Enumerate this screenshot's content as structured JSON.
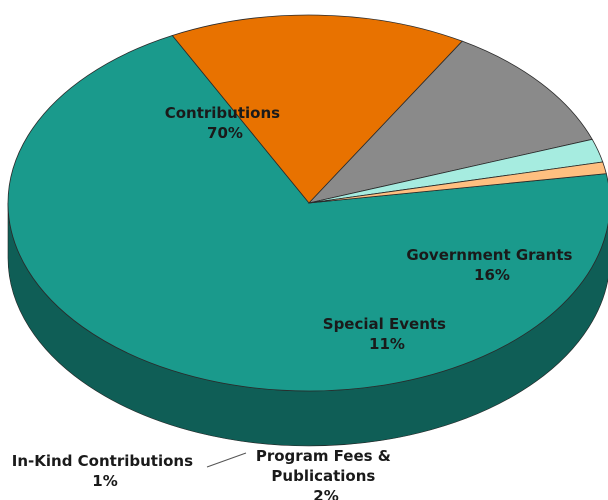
{
  "chart_data": {
    "type": "pie",
    "title": "",
    "slices": [
      {
        "label": "Contributions",
        "value": 70,
        "value_label": "70%",
        "color": "#1a9a8c",
        "side_color": "#0f5e56"
      },
      {
        "label": "Government Grants",
        "value": 16,
        "value_label": "16%",
        "color": "#e87200",
        "side_color": "#5a2a00"
      },
      {
        "label": "Special Events",
        "value": 11,
        "value_label": "11%",
        "color": "#8a8a8a",
        "side_color": "#3a3a3a"
      },
      {
        "label": "Program Fees & Publications",
        "value": 2,
        "value_label": "2%",
        "color": "#a6ece0",
        "side_color": "#3f7a72"
      },
      {
        "label": "In-Kind Contributions",
        "value": 1,
        "value_label": "1%",
        "color": "#ffbf80",
        "side_color": "#8c5a36"
      }
    ],
    "legend": "none"
  }
}
